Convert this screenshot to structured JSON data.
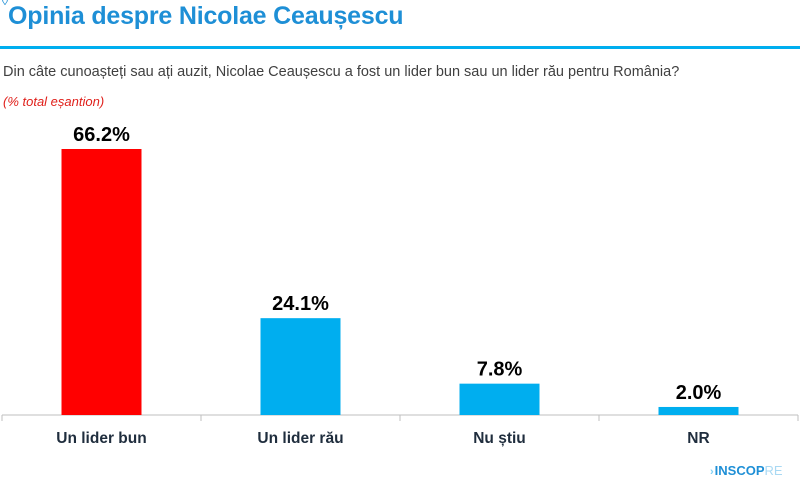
{
  "header": {
    "title": "Opinia despre Nicolae Ceaușescu",
    "question": "Din câte cunoașteți sau ați auzit, Nicolae Ceaușescu a fost un lider bun sau un lider rău pentru România?",
    "subtitle": "(% total eșantion)"
  },
  "logo": {
    "chevron": "›",
    "name": "INSCOP",
    "suffix": "RE"
  },
  "colors": {
    "accent": "#1e8fd6",
    "highlight": "#ff0000",
    "bar": "#00aeef",
    "subtitle": "#e0201b"
  },
  "chart_data": {
    "type": "bar",
    "categories": [
      "Un lider bun",
      "Un lider rău",
      "Nu știu",
      "NR"
    ],
    "values": [
      66.2,
      24.1,
      7.8,
      2.0
    ],
    "value_labels": [
      "66.2%",
      "24.1%",
      "7.8%",
      "2.0%"
    ],
    "bar_colors": [
      "#ff0000",
      "#00aeef",
      "#00aeef",
      "#00aeef"
    ],
    "title": "",
    "xlabel": "",
    "ylabel": "",
    "ylim": [
      0,
      66.2
    ],
    "grid": false,
    "legend": "none"
  }
}
